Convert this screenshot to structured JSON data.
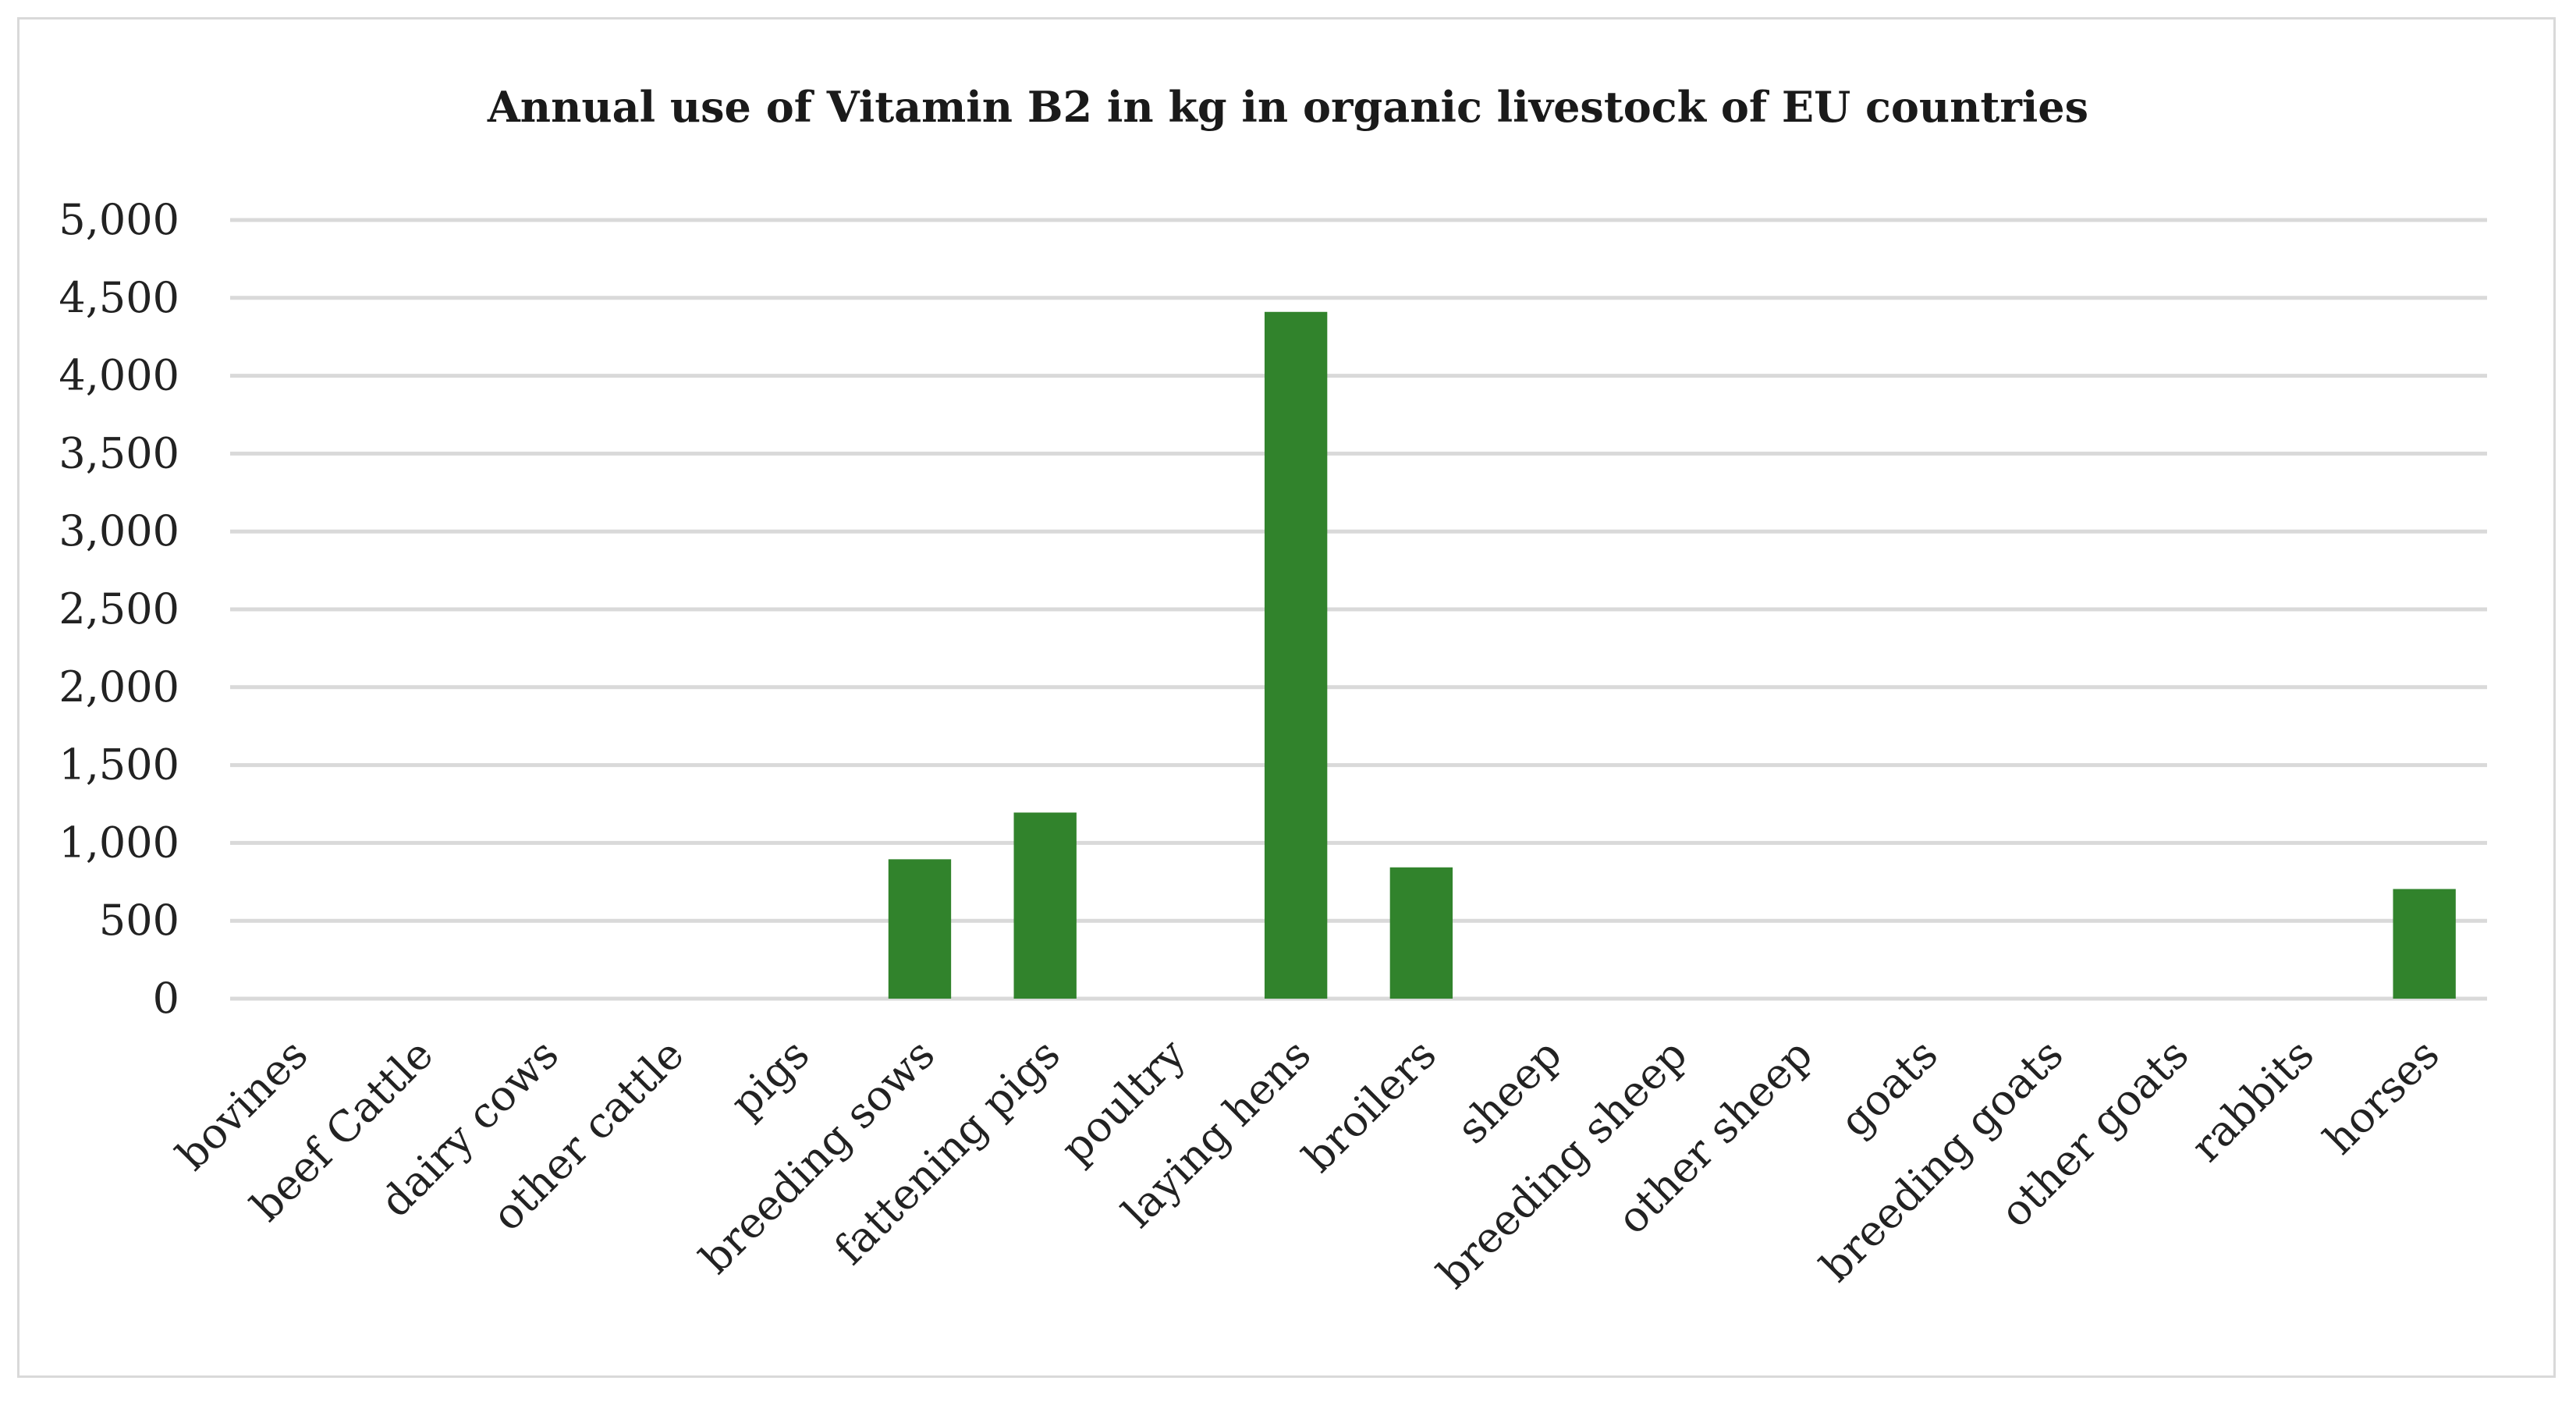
{
  "chart_data": {
    "type": "bar",
    "title": "Annual use of Vitamin B2 in kg in organic livestock of EU countries",
    "xlabel": "",
    "ylabel": "",
    "categories": [
      "bovines",
      "beef Cattle",
      "dairy cows",
      "other cattle",
      "pigs",
      "breeding sows",
      "fattening pigs",
      "poultry",
      "laying hens",
      "broilers",
      "sheep",
      "breeding sheep",
      "other sheep",
      "goats",
      "breeding goats",
      "other goats",
      "rabbits",
      "horses"
    ],
    "values": [
      0,
      0,
      0,
      0,
      0,
      895,
      1195,
      0,
      4410,
      843,
      0,
      0,
      0,
      0,
      0,
      0,
      0,
      704
    ],
    "ylim": [
      0,
      5000
    ],
    "yticks": [
      0,
      500,
      1000,
      1500,
      2000,
      2500,
      3000,
      3500,
      4000,
      4500,
      5000
    ],
    "ytick_labels": [
      "0",
      "500",
      "1,000",
      "1,500",
      "2,000",
      "2,500",
      "3,000",
      "3,500",
      "4,000",
      "4,500",
      "5,000"
    ],
    "grid": true,
    "legend": "none",
    "bar_color": "#31832c",
    "grid_color": "#d9d9d9"
  }
}
